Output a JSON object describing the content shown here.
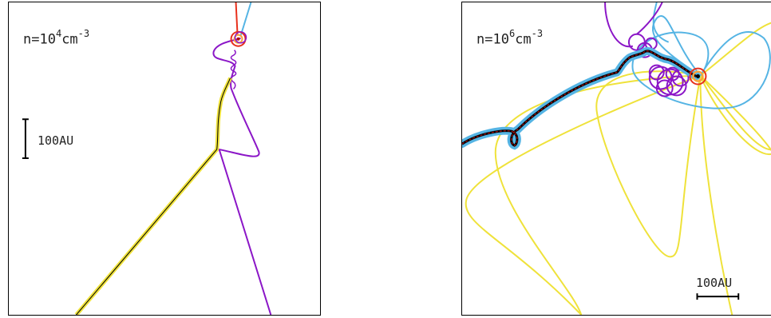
{
  "panels": [
    {
      "density": {
        "base": "n=10",
        "exp": "4",
        "unit": "cm",
        "unit_exp": "-3"
      },
      "scale_bar": {
        "label": "100AU",
        "orientation": "vertical"
      }
    },
    {
      "density": {
        "base": "n=10",
        "exp": "6",
        "unit": "cm",
        "unit_exp": "-3"
      },
      "scale_bar": {
        "label": "100AU",
        "orientation": "horizontal"
      }
    }
  ],
  "colors": {
    "red": "#e8301c",
    "cyan": "#55b4e4",
    "purple": "#8b16c7",
    "yellow": "#efe23a",
    "orange": "#f7a43b",
    "black": "#000000",
    "dark_red": "#b01010"
  }
}
